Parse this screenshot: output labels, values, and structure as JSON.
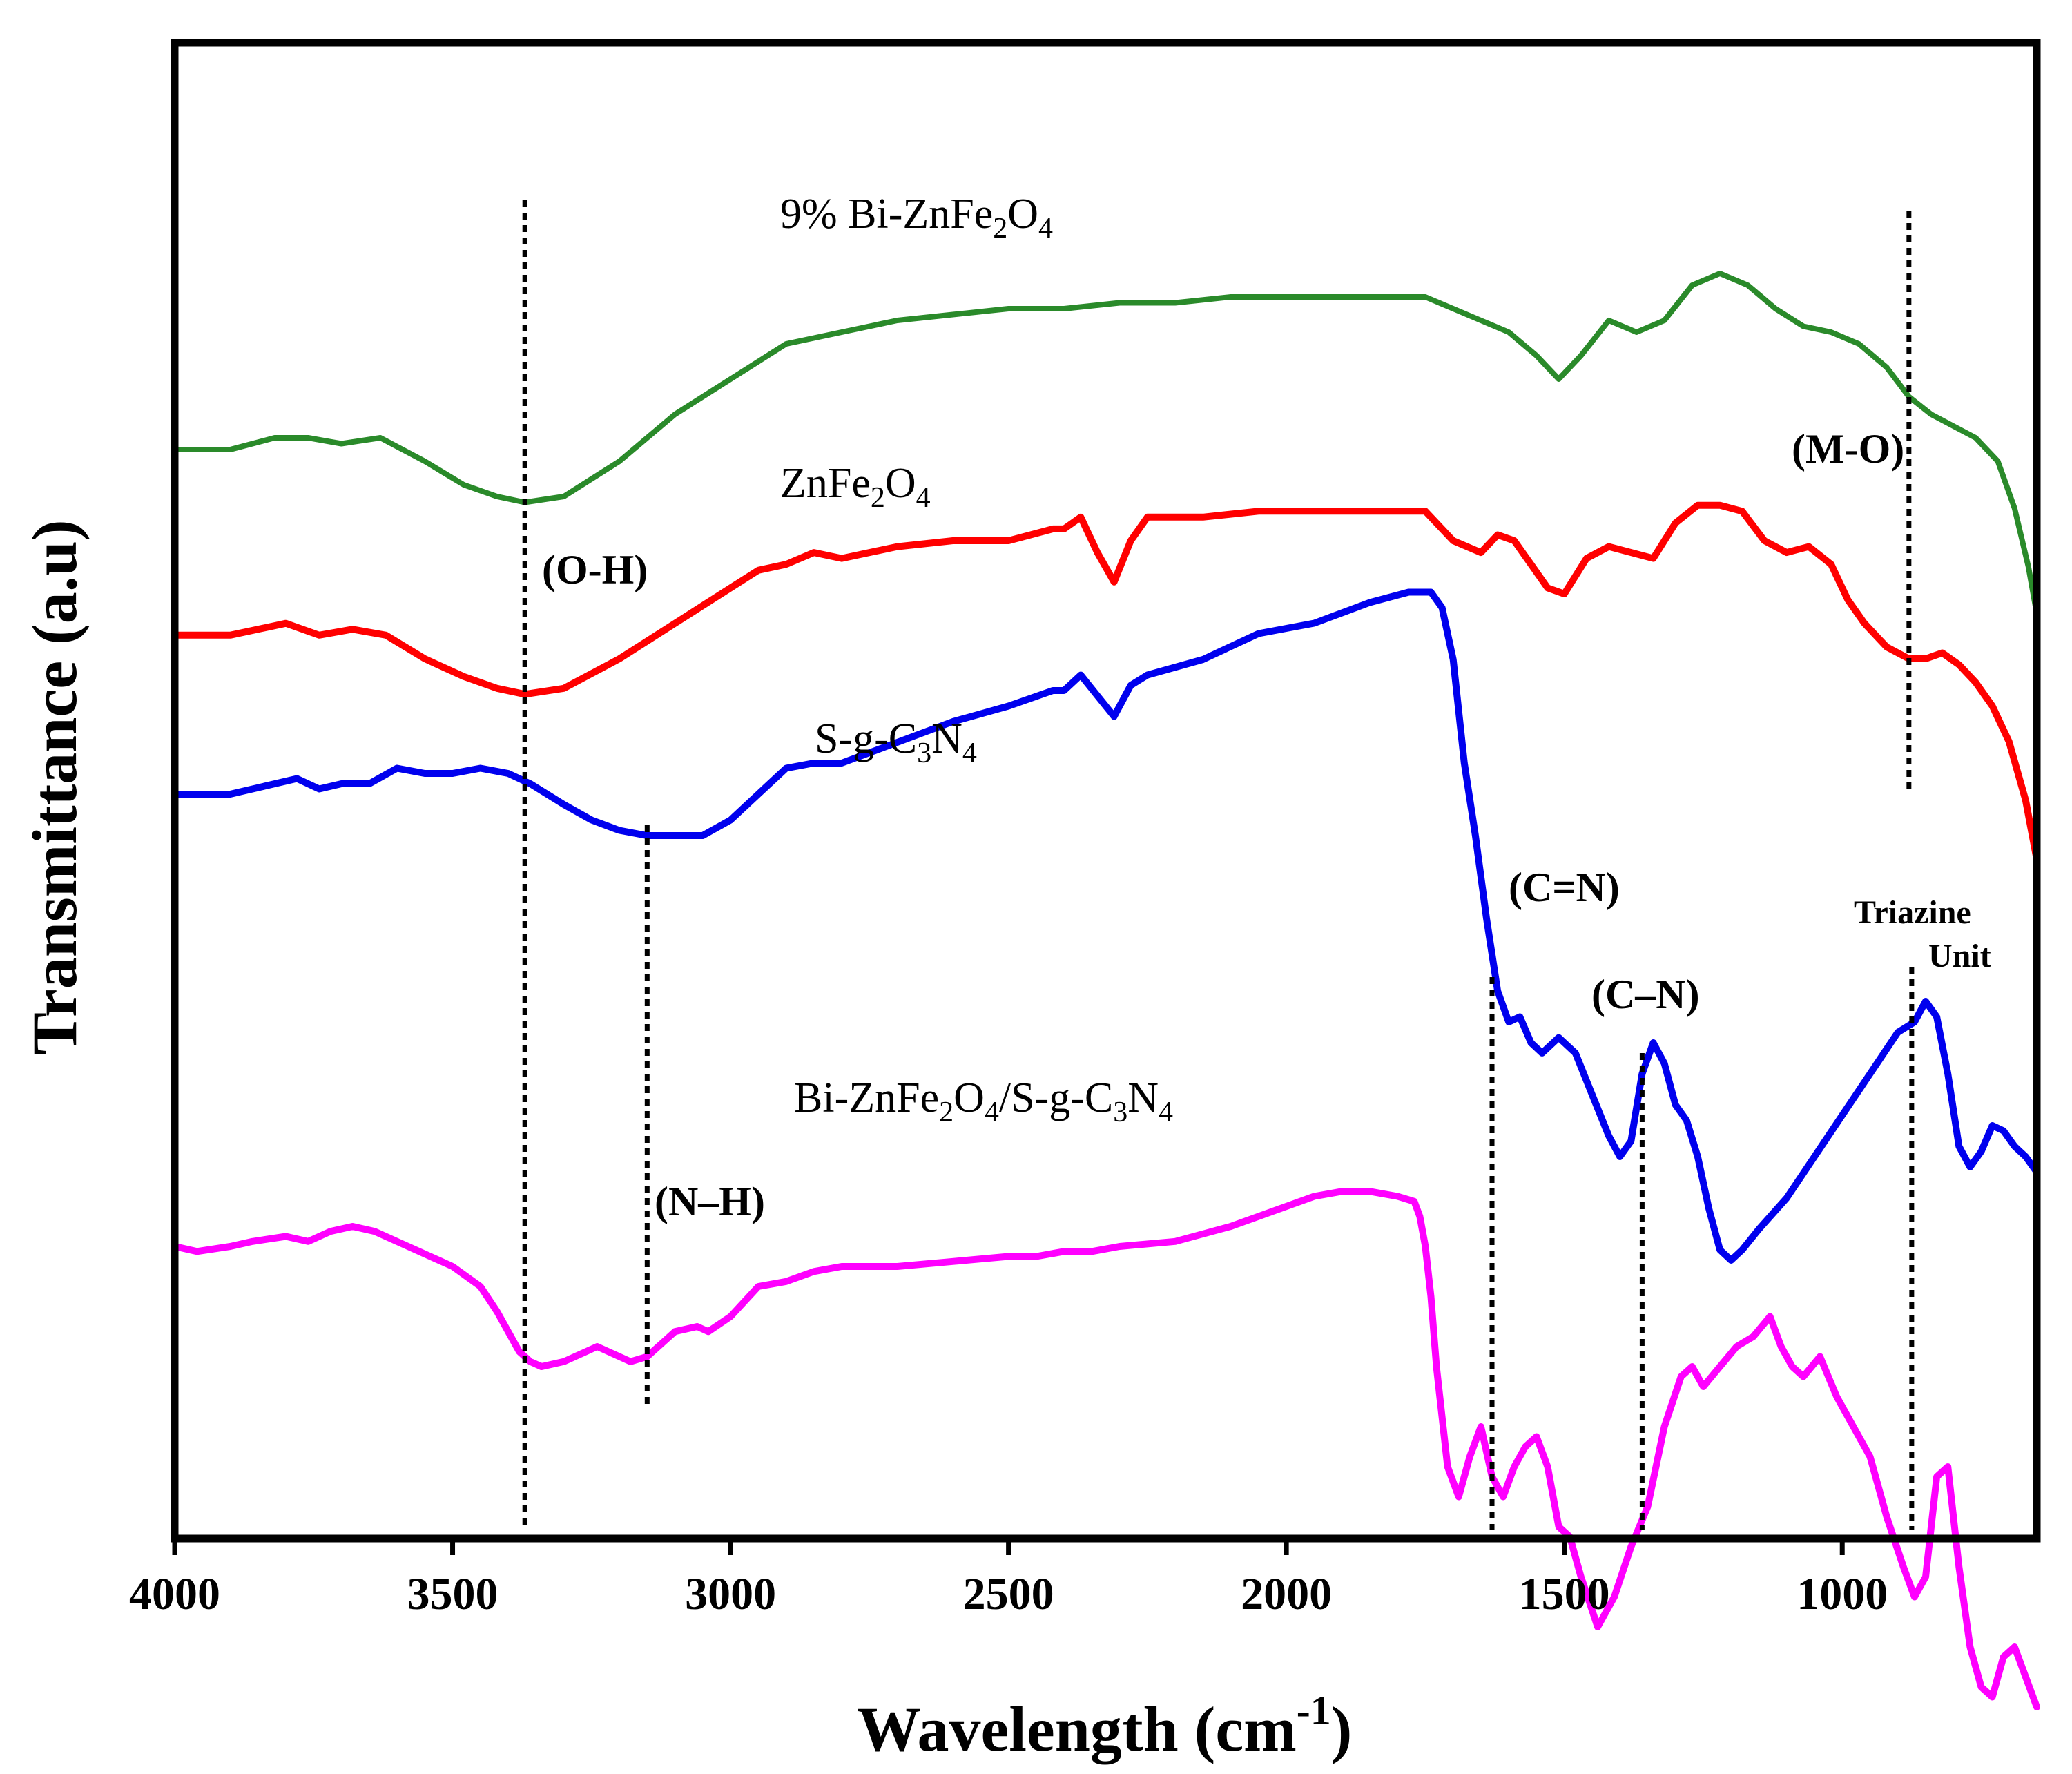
{
  "chart_data": {
    "type": "line",
    "title": "",
    "xlabel": "Wavelength (cm",
    "xlabel_sup": "-1",
    "xlabel_close": ")",
    "ylabel": "Transmittance (a.u)",
    "xlim": [
      4000,
      650
    ],
    "x_reversed": true,
    "yticks_shown": false,
    "xticks": [
      4000,
      3500,
      3000,
      2500,
      2000,
      1500,
      1000
    ],
    "xtick_labels": [
      "4000",
      "3500",
      "3000",
      "2500",
      "2000",
      "1500",
      "1000"
    ],
    "series": [
      {
        "name": "9% Bi-ZnFe2O4",
        "label_parts": [
          [
            "9% Bi-ZnFe",
            false
          ],
          [
            "2",
            true
          ],
          [
            "O",
            false
          ],
          [
            "4",
            true
          ]
        ],
        "color": "#2a8a2a",
        "x": [
          4000,
          3900,
          3820,
          3760,
          3700,
          3630,
          3550,
          3480,
          3420,
          3370,
          3300,
          3200,
          3100,
          3000,
          2900,
          2800,
          2700,
          2600,
          2500,
          2400,
          2300,
          2200,
          2100,
          2000,
          1900,
          1800,
          1750,
          1700,
          1650,
          1600,
          1550,
          1510,
          1470,
          1420,
          1370,
          1320,
          1270,
          1220,
          1170,
          1120,
          1070,
          1020,
          970,
          920,
          880,
          840,
          800,
          760,
          720,
          690,
          665,
          650
        ],
        "y": [
          0.57,
          0.57,
          0.58,
          0.58,
          0.575,
          0.58,
          0.56,
          0.54,
          0.53,
          0.525,
          0.53,
          0.56,
          0.6,
          0.63,
          0.66,
          0.67,
          0.68,
          0.685,
          0.69,
          0.69,
          0.695,
          0.695,
          0.7,
          0.7,
          0.7,
          0.7,
          0.7,
          0.69,
          0.68,
          0.67,
          0.65,
          0.63,
          0.65,
          0.68,
          0.67,
          0.68,
          0.71,
          0.72,
          0.71,
          0.69,
          0.675,
          0.67,
          0.66,
          0.64,
          0.615,
          0.6,
          0.59,
          0.58,
          0.56,
          0.52,
          0.47,
          0.43
        ]
      },
      {
        "name": "ZnFe2O4",
        "label_parts": [
          [
            "ZnFe",
            false
          ],
          [
            "2",
            true
          ],
          [
            "O",
            false
          ],
          [
            "4",
            true
          ]
        ],
        "color": "#ff0000",
        "x": [
          4000,
          3900,
          3800,
          3740,
          3680,
          3620,
          3550,
          3480,
          3420,
          3370,
          3300,
          3200,
          3100,
          3000,
          2950,
          2900,
          2850,
          2800,
          2700,
          2600,
          2500,
          2420,
          2400,
          2370,
          2340,
          2310,
          2280,
          2250,
          2150,
          2050,
          1950,
          1850,
          1750,
          1700,
          1650,
          1620,
          1590,
          1560,
          1530,
          1500,
          1460,
          1420,
          1380,
          1340,
          1300,
          1260,
          1220,
          1180,
          1140,
          1100,
          1060,
          1020,
          990,
          960,
          920,
          880,
          850,
          820,
          790,
          760,
          730,
          700,
          670,
          650
        ],
        "y": [
          0.62,
          0.62,
          0.63,
          0.62,
          0.625,
          0.62,
          0.6,
          0.585,
          0.575,
          0.57,
          0.575,
          0.6,
          0.63,
          0.66,
          0.675,
          0.68,
          0.69,
          0.685,
          0.695,
          0.7,
          0.7,
          0.71,
          0.71,
          0.72,
          0.69,
          0.665,
          0.7,
          0.72,
          0.72,
          0.725,
          0.725,
          0.725,
          0.725,
          0.7,
          0.69,
          0.705,
          0.7,
          0.68,
          0.66,
          0.655,
          0.685,
          0.695,
          0.69,
          0.685,
          0.715,
          0.73,
          0.73,
          0.725,
          0.7,
          0.69,
          0.695,
          0.68,
          0.65,
          0.63,
          0.61,
          0.6,
          0.6,
          0.605,
          0.595,
          0.58,
          0.56,
          0.53,
          0.48,
          0.43
        ]
      },
      {
        "name": "S-g-C3N4",
        "label_parts": [
          [
            "S-g-C",
            false
          ],
          [
            "3",
            true
          ],
          [
            "N",
            false
          ],
          [
            "4",
            true
          ]
        ],
        "color": "#0000ee",
        "x": [
          4000,
          3900,
          3820,
          3780,
          3740,
          3700,
          3650,
          3600,
          3550,
          3500,
          3450,
          3400,
          3360,
          3300,
          3250,
          3200,
          3150,
          3100,
          3050,
          3000,
          2950,
          2900,
          2850,
          2800,
          2700,
          2600,
          2500,
          2420,
          2400,
          2370,
          2340,
          2310,
          2280,
          2250,
          2150,
          2050,
          1950,
          1850,
          1780,
          1760,
          1740,
          1720,
          1700,
          1680,
          1660,
          1640,
          1620,
          1600,
          1580,
          1560,
          1540,
          1510,
          1480,
          1450,
          1420,
          1400,
          1380,
          1360,
          1340,
          1320,
          1300,
          1280,
          1260,
          1240,
          1220,
          1200,
          1180,
          1150,
          1100,
          1050,
          1000,
          950,
          900,
          870,
          850,
          830,
          810,
          790,
          770,
          750,
          730,
          710,
          690,
          670,
          650
        ],
        "y": [
          0.42,
          0.42,
          0.43,
          0.435,
          0.425,
          0.43,
          0.43,
          0.445,
          0.44,
          0.44,
          0.445,
          0.44,
          0.43,
          0.41,
          0.395,
          0.385,
          0.38,
          0.38,
          0.38,
          0.395,
          0.42,
          0.445,
          0.45,
          0.45,
          0.47,
          0.49,
          0.505,
          0.52,
          0.52,
          0.535,
          0.515,
          0.495,
          0.525,
          0.535,
          0.55,
          0.575,
          0.585,
          0.605,
          0.615,
          0.615,
          0.615,
          0.6,
          0.55,
          0.45,
          0.38,
          0.3,
          0.23,
          0.2,
          0.205,
          0.18,
          0.17,
          0.185,
          0.17,
          0.13,
          0.09,
          0.07,
          0.085,
          0.15,
          0.18,
          0.16,
          0.12,
          0.105,
          0.07,
          0.02,
          -0.02,
          -0.03,
          -0.02,
          0.0,
          0.03,
          0.07,
          0.11,
          0.15,
          0.19,
          0.2,
          0.22,
          0.205,
          0.15,
          0.08,
          0.06,
          0.075,
          0.1,
          0.095,
          0.08,
          0.07,
          0.055
        ]
      },
      {
        "name": "Bi-ZnFe2O4/S-g-C3N4",
        "label_parts": [
          [
            "Bi-ZnFe",
            false
          ],
          [
            "2",
            true
          ],
          [
            "O",
            false
          ],
          [
            "4",
            true
          ],
          [
            "/S-g-C",
            false
          ],
          [
            "3",
            true
          ],
          [
            "N",
            false
          ],
          [
            "4",
            true
          ]
        ],
        "color": "#ff00ff",
        "x": [
          4000,
          3960,
          3900,
          3860,
          3800,
          3760,
          3720,
          3680,
          3640,
          3600,
          3560,
          3500,
          3450,
          3420,
          3400,
          3380,
          3360,
          3340,
          3300,
          3260,
          3240,
          3200,
          3180,
          3150,
          3120,
          3100,
          3060,
          3040,
          3000,
          2950,
          2900,
          2850,
          2800,
          2700,
          2600,
          2500,
          2450,
          2400,
          2350,
          2300,
          2200,
          2100,
          2050,
          1950,
          1900,
          1850,
          1800,
          1770,
          1760,
          1750,
          1740,
          1730,
          1710,
          1690,
          1670,
          1650,
          1630,
          1610,
          1590,
          1570,
          1550,
          1530,
          1510,
          1490,
          1470,
          1440,
          1410,
          1380,
          1350,
          1320,
          1290,
          1270,
          1250,
          1220,
          1190,
          1160,
          1130,
          1110,
          1090,
          1070,
          1040,
          1010,
          990,
          970,
          950,
          920,
          890,
          870,
          850,
          830,
          810,
          790,
          770,
          750,
          730,
          710,
          690,
          670,
          650
        ],
        "y": [
          0.1,
          0.095,
          0.1,
          0.105,
          0.11,
          0.105,
          0.115,
          0.12,
          0.115,
          0.105,
          0.095,
          0.08,
          0.06,
          0.035,
          0.015,
          -0.005,
          -0.015,
          -0.02,
          -0.015,
          -0.005,
          0.0,
          -0.01,
          -0.015,
          -0.01,
          0.005,
          0.015,
          0.02,
          0.015,
          0.03,
          0.06,
          0.065,
          0.075,
          0.08,
          0.08,
          0.085,
          0.09,
          0.09,
          0.095,
          0.095,
          0.1,
          0.105,
          0.12,
          0.13,
          0.15,
          0.155,
          0.155,
          0.15,
          0.145,
          0.13,
          0.1,
          0.05,
          -0.02,
          -0.12,
          -0.15,
          -0.11,
          -0.08,
          -0.13,
          -0.15,
          -0.12,
          -0.1,
          -0.09,
          -0.12,
          -0.18,
          -0.19,
          -0.23,
          -0.28,
          -0.25,
          -0.2,
          -0.16,
          -0.08,
          -0.03,
          -0.02,
          -0.04,
          -0.02,
          0.0,
          0.01,
          0.03,
          0.0,
          -0.02,
          -0.03,
          -0.01,
          -0.05,
          -0.07,
          -0.09,
          -0.11,
          -0.17,
          -0.22,
          -0.25,
          -0.23,
          -0.13,
          -0.12,
          -0.22,
          -0.3,
          -0.34,
          -0.35,
          -0.31,
          -0.3,
          -0.33,
          -0.36
        ]
      }
    ],
    "annotations": [
      {
        "text": "(O-H)",
        "x": 3370
      },
      {
        "text": "(N–H)",
        "x": 3150
      },
      {
        "text": "(C=N)",
        "x": 1630
      },
      {
        "text": "(C–N)",
        "x": 1360
      },
      {
        "text": "Triazine",
        "x": 875
      },
      {
        "text": "Unit",
        "x": 875
      },
      {
        "text": "(M-O)",
        "x": 880
      }
    ],
    "reference_lines": [
      {
        "name": "O-H",
        "x": 3370
      },
      {
        "name": "N-H",
        "x": 3150
      },
      {
        "name": "C=N",
        "x": 1630
      },
      {
        "name": "C-N",
        "x": 1360
      },
      {
        "name": "Triazine",
        "x": 875
      },
      {
        "name": "M-O",
        "x": 880
      }
    ]
  }
}
